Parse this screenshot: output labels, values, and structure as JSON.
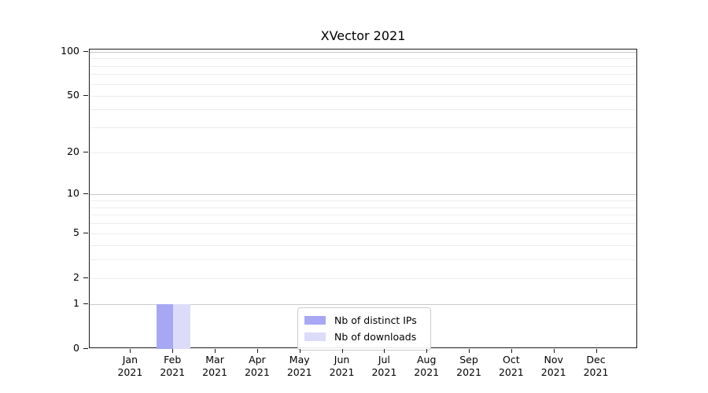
{
  "title": "XVector 2021",
  "chart_data": {
    "type": "bar",
    "title": "XVector 2021",
    "scale": "log1p",
    "categories": [
      "Jan",
      "Feb",
      "Mar",
      "Apr",
      "May",
      "Jun",
      "Jul",
      "Aug",
      "Sep",
      "Oct",
      "Nov",
      "Dec"
    ],
    "year": "2021",
    "series": [
      {
        "name": "Nb of distinct IPs",
        "color": "#a7a7f4",
        "values": [
          0,
          1,
          0,
          0,
          0,
          0,
          0,
          0,
          0,
          0,
          0,
          0
        ]
      },
      {
        "name": "Nb of downloads",
        "color": "#dcdcfa",
        "values": [
          0,
          1,
          0,
          0,
          0,
          0,
          0,
          0,
          0,
          0,
          0,
          0
        ]
      }
    ],
    "yticks": [
      0,
      1,
      2,
      5,
      10,
      20,
      50,
      100
    ],
    "ylim": [
      0,
      104
    ],
    "grid": "horizontal, log minor + major decades",
    "legend_position": "lower center",
    "colors": {
      "major_gridline": "#c9c9c9",
      "minor_gridline": "#ededed",
      "axis": "#1a1a1a",
      "background": "#ffffff"
    }
  }
}
